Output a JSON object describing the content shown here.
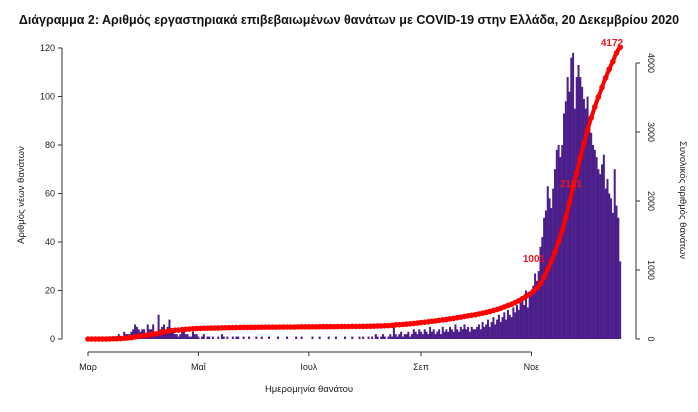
{
  "chart_data": {
    "type": "bar+line",
    "title": "Διάγραμμα 2: Αριθμός εργαστηριακά επιβεβαιωμένων θανάτων με COVID-19 στην Ελλάδα, 20 Δεκεμβρίου 2020",
    "xlabel": "Ημερομηνία θανάτου",
    "ylabel_left": "Αριθμός νέων θανάτων",
    "ylabel_right": "Συνολικός αριθμός θανάτων",
    "x_start": "2020-03-01",
    "x_end": "2020-12-20",
    "x_ticks": [
      "Μαρ",
      "Μαΐ",
      "Ιουλ",
      "Σεπ",
      "Νοε"
    ],
    "ylim_left": [
      0,
      120
    ],
    "yticks_left": [
      0,
      20,
      40,
      60,
      80,
      100,
      120
    ],
    "ylim_right": [
      0,
      4000
    ],
    "yticks_right": [
      0,
      1000,
      2000,
      3000,
      4000
    ],
    "grid": false,
    "colors": {
      "bars": "#4b1e8a",
      "cumulative_line": "#ff0000",
      "annotation": "#e8141c"
    },
    "annotations": [
      "1001",
      "2101",
      "4172"
    ],
    "daily_deaths": [
      0,
      0,
      0,
      0,
      0,
      0,
      0,
      0,
      0,
      0,
      0,
      1,
      0,
      1,
      1,
      1,
      0,
      2,
      1,
      1,
      3,
      2,
      2,
      2,
      3,
      4,
      6,
      5,
      4,
      3,
      4,
      4,
      2,
      6,
      4,
      4,
      6,
      3,
      2,
      10,
      4,
      5,
      6,
      3,
      5,
      8,
      4,
      3,
      2,
      2,
      1,
      2,
      4,
      3,
      2,
      2,
      1,
      1,
      3,
      2,
      2,
      1,
      0,
      1,
      2,
      0,
      1,
      1,
      0,
      1,
      0,
      0,
      1,
      0,
      2,
      1,
      0,
      1,
      0,
      0,
      1,
      0,
      1,
      1,
      0,
      0,
      1,
      0,
      0,
      1,
      0,
      0,
      0,
      1,
      0,
      0,
      1,
      0,
      0,
      0,
      1,
      0,
      0,
      0,
      0,
      1,
      0,
      0,
      0,
      0,
      1,
      0,
      0,
      0,
      0,
      1,
      0,
      0,
      1,
      0,
      0,
      0,
      0,
      0,
      1,
      0,
      0,
      0,
      1,
      0,
      0,
      0,
      0,
      1,
      0,
      0,
      0,
      1,
      0,
      0,
      0,
      0,
      1,
      0,
      0,
      0,
      1,
      0,
      0,
      0,
      1,
      0,
      1,
      0,
      0,
      1,
      0,
      1,
      0,
      2,
      1,
      0,
      1,
      2,
      1,
      0,
      1,
      2,
      1,
      6,
      2,
      1,
      2,
      3,
      1,
      2,
      2,
      3,
      1,
      2,
      4,
      3,
      2,
      4,
      3,
      2,
      4,
      3,
      2,
      5,
      3,
      4,
      2,
      3,
      4,
      2,
      5,
      3,
      4,
      3,
      5,
      4,
      3,
      6,
      4,
      3,
      5,
      4,
      6,
      4,
      5,
      3,
      5,
      4,
      4,
      5,
      6,
      4,
      7,
      5,
      6,
      8,
      5,
      7,
      9,
      6,
      8,
      10,
      7,
      9,
      11,
      8,
      12,
      10,
      9,
      13,
      11,
      14,
      12,
      15,
      16,
      14,
      20,
      13,
      18,
      18,
      22,
      27,
      24,
      28,
      38,
      42,
      50,
      53,
      63,
      58,
      54,
      62,
      70,
      78,
      80,
      75,
      80,
      93,
      98,
      108,
      102,
      116,
      118,
      95,
      108,
      113,
      108,
      104,
      99,
      95,
      100,
      90,
      85,
      80,
      78,
      75,
      70,
      68,
      72,
      76,
      62,
      66,
      60,
      58,
      52,
      70,
      55,
      50,
      32
    ]
  }
}
